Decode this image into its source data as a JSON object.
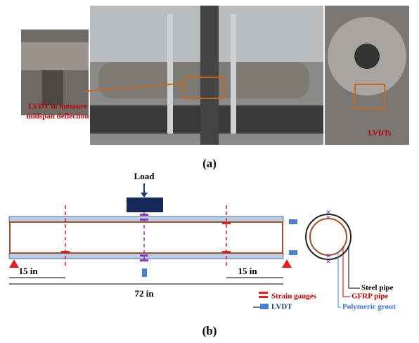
{
  "photos": {
    "left_label": [
      "LVDT to measure",
      "midspan deflection"
    ],
    "right_label": "LVDTs",
    "caption": "(a)"
  },
  "diagram": {
    "load": "Load",
    "dim_left": "15 in",
    "dim_right": "15 in",
    "dim_total": "72 in",
    "legend": [
      "Strain gauges",
      "LVDT"
    ],
    "section_labels": [
      "Steel pipe",
      "GFRP pipe",
      "Polymeric grout"
    ],
    "caption": "(b)"
  }
}
